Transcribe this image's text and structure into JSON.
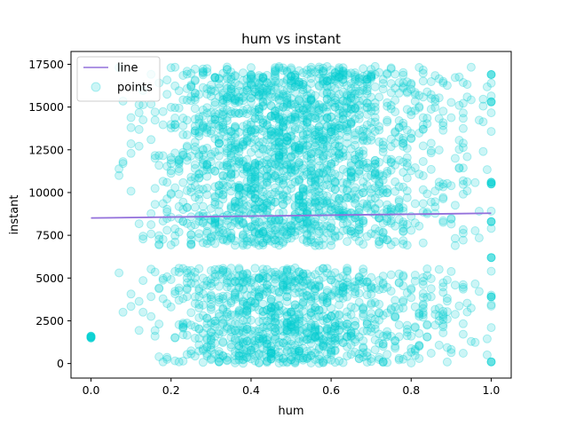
{
  "chart_data": {
    "type": "scatter",
    "title": "hum vs instant",
    "xlabel": "hum",
    "ylabel": "instant",
    "xlim": [
      -0.05,
      1.05
    ],
    "ylim": [
      -850,
      18250
    ],
    "xticks": [
      0.0,
      0.2,
      0.4,
      0.6,
      0.8,
      1.0
    ],
    "xtick_labels": [
      "0.0",
      "0.2",
      "0.4",
      "0.6",
      "0.8",
      "1.0"
    ],
    "yticks": [
      0,
      2500,
      5000,
      7500,
      10000,
      12500,
      15000,
      17500
    ],
    "ytick_labels": [
      "0",
      "2500",
      "5000",
      "7500",
      "10000",
      "12500",
      "15000",
      "17500"
    ],
    "grid": false,
    "legend": {
      "position": "top-left",
      "entries": [
        "line",
        "points"
      ]
    },
    "series": [
      {
        "name": "line",
        "kind": "line",
        "color": "#9370db",
        "x": [
          0.0,
          1.0
        ],
        "y": [
          8510,
          8790
        ]
      },
      {
        "name": "points",
        "kind": "scatter",
        "color": "#00ced1",
        "alpha": 0.2,
        "instant_range": [
          1,
          17379
        ],
        "gap_range": [
          5600,
          6900
        ],
        "hum_levels": [
          0.07,
          0.08,
          0.1,
          0.12,
          0.13,
          0.15,
          0.16,
          0.17,
          0.18,
          0.19,
          0.2,
          0.21,
          0.22,
          0.23,
          0.24,
          0.25,
          0.26,
          0.27,
          0.28,
          0.29,
          0.3,
          0.31,
          0.32,
          0.33,
          0.34,
          0.35,
          0.36,
          0.37,
          0.38,
          0.39,
          0.4,
          0.41,
          0.42,
          0.43,
          0.44,
          0.45,
          0.46,
          0.47,
          0.48,
          0.49,
          0.5,
          0.51,
          0.52,
          0.53,
          0.54,
          0.55,
          0.56,
          0.57,
          0.58,
          0.59,
          0.6,
          0.61,
          0.62,
          0.63,
          0.64,
          0.65,
          0.66,
          0.67,
          0.68,
          0.69,
          0.7,
          0.71,
          0.72,
          0.73,
          0.74,
          0.75,
          0.76,
          0.77,
          0.78,
          0.79,
          0.8,
          0.81,
          0.82,
          0.83,
          0.84,
          0.85,
          0.86,
          0.87,
          0.88,
          0.89,
          0.9,
          0.91,
          0.92,
          0.93,
          0.94,
          0.95,
          0.96,
          0.97,
          0.98,
          0.99,
          1.0
        ],
        "hum_levels_weight": [
          0.2,
          0.2,
          0.3,
          0.3,
          0.3,
          0.4,
          0.4,
          0.5,
          0.5,
          0.6,
          0.7,
          0.8,
          0.9,
          1.0,
          1.1,
          1.2,
          1.4,
          1.5,
          1.6,
          1.7,
          1.8,
          1.9,
          2.0,
          2.1,
          2.2,
          2.3,
          2.4,
          2.5,
          2.6,
          2.6,
          2.7,
          2.7,
          2.8,
          2.8,
          2.8,
          2.9,
          2.9,
          2.9,
          2.9,
          2.9,
          2.9,
          2.9,
          2.9,
          2.8,
          2.8,
          2.8,
          2.7,
          2.7,
          2.6,
          2.6,
          2.5,
          2.4,
          2.3,
          2.2,
          2.2,
          2.1,
          2.0,
          1.9,
          1.8,
          1.7,
          1.6,
          1.5,
          1.4,
          1.3,
          1.2,
          1.1,
          1.0,
          1.0,
          1.4,
          0.9,
          0.8,
          0.7,
          0.7,
          1.2,
          0.6,
          0.6,
          0.5,
          0.5,
          1.0,
          0.4,
          0.4,
          0.3,
          0.3,
          0.9,
          0.3,
          0.2,
          0.2,
          0.2,
          0.2,
          0.2,
          0.5
        ],
        "special_points": [
          {
            "x": 0.0,
            "y": 1550
          },
          {
            "x": 0.0,
            "y": 1600
          },
          {
            "x": 0.0,
            "y": 1500
          },
          {
            "x": 1.0,
            "y": 16900
          },
          {
            "x": 1.0,
            "y": 15300
          },
          {
            "x": 1.0,
            "y": 10600
          },
          {
            "x": 1.0,
            "y": 10500
          },
          {
            "x": 1.0,
            "y": 8300
          },
          {
            "x": 1.0,
            "y": 6200
          },
          {
            "x": 1.0,
            "y": 3900
          },
          {
            "x": 1.0,
            "y": 100
          }
        ]
      }
    ]
  }
}
